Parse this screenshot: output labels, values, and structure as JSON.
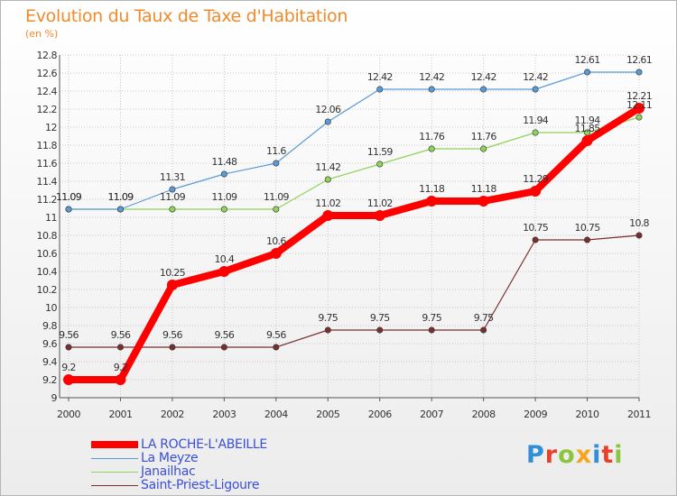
{
  "header": {
    "title": "Evolution du Taux de Taxe d'Habitation",
    "subtitle": "(en %)"
  },
  "logo": {
    "text": "Proxiti",
    "letter_colors": [
      "#2f8fd8",
      "#e8402a",
      "#8cc63f",
      "#f7a51c",
      "#2f8fd8",
      "#e8402a",
      "#8cc63f"
    ]
  },
  "chart_data": {
    "type": "line",
    "title": "Evolution du Taux de Taxe d'Habitation",
    "ylabel": "(en %)",
    "xlabel": "",
    "x": [
      "2000",
      "2001",
      "2002",
      "2003",
      "2004",
      "2005",
      "2006",
      "2007",
      "2008",
      "2009",
      "2010",
      "2011"
    ],
    "ylim": [
      9,
      12.8
    ],
    "yticks": [
      "9",
      "9.2",
      "9.4",
      "9.6",
      "9.8",
      "10",
      "10.2",
      "10.4",
      "10.6",
      "10.8",
      "11",
      "11.2",
      "11.4",
      "11.6",
      "11.8",
      "12",
      "12.2",
      "12.4",
      "12.6",
      "12.8"
    ],
    "grid": true,
    "legend_position": "bottom-left",
    "series": [
      {
        "name": "LA ROCHE-L'ABEILLE",
        "color": "#ff0000",
        "values": [
          9.2,
          9.2,
          10.25,
          10.4,
          10.6,
          11.02,
          11.02,
          11.18,
          11.18,
          11.29,
          11.85,
          12.21
        ],
        "labels": [
          "9.2",
          "9.2",
          "10.25",
          "10.4",
          "10.6",
          "11.02",
          "11.02",
          "11.18",
          "11.18",
          "11.29",
          "11.85",
          "12.21"
        ]
      },
      {
        "name": "La Meyze",
        "color": "#5b9bd5",
        "values": [
          11.09,
          11.09,
          11.31,
          11.48,
          11.6,
          12.06,
          12.42,
          12.42,
          12.42,
          12.42,
          12.61,
          12.61
        ],
        "labels": [
          "11.09",
          "11.09",
          "11.31",
          "11.48",
          "11.6",
          "12.06",
          "12.42",
          "12.42",
          "12.42",
          "12.42",
          "12.61",
          "12.61"
        ]
      },
      {
        "name": "Janailhac",
        "color": "#8fd35a",
        "values": [
          11.09,
          11.09,
          11.09,
          11.09,
          11.09,
          11.42,
          11.59,
          11.76,
          11.76,
          11.94,
          11.94,
          12.11
        ],
        "labels": [
          "11.09",
          "11.09",
          "11.09",
          "11.09",
          "11.09",
          "11.42",
          "11.59",
          "11.76",
          "11.76",
          "11.94",
          "11.94",
          "12.11"
        ]
      },
      {
        "name": "Saint-Priest-Ligoure",
        "color": "#7a2e2e",
        "values": [
          9.56,
          9.56,
          9.56,
          9.56,
          9.56,
          9.75,
          9.75,
          9.75,
          9.75,
          10.75,
          10.75,
          10.8
        ],
        "labels": [
          "9.56",
          "9.56",
          "9.56",
          "9.56",
          "9.56",
          "9.75",
          "9.75",
          "9.75",
          "9.75",
          "10.75",
          "10.75",
          "10.8"
        ]
      }
    ]
  }
}
